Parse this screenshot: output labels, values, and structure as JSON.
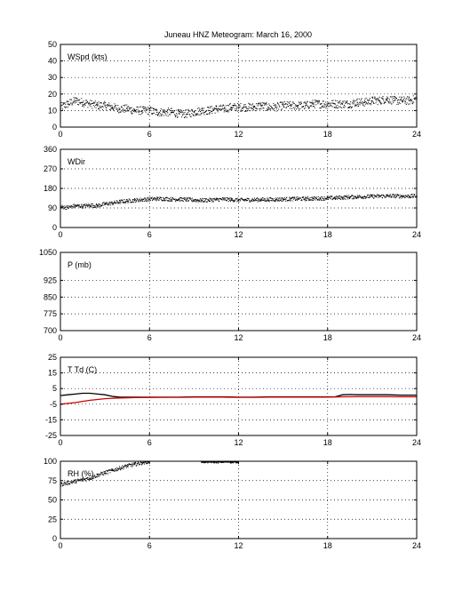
{
  "title": "Juneau HNZ Meteogram:      March 16, 2000",
  "chart_data": [
    {
      "type": "scatter",
      "label": "WSpd (kts)",
      "xlim": [
        0,
        24
      ],
      "ylim": [
        0,
        50
      ],
      "xticks": [
        0,
        6,
        12,
        18,
        24
      ],
      "yticks": [
        0,
        10,
        20,
        30,
        40,
        50
      ],
      "grid": true,
      "series": [
        {
          "values_hint": "noisy dotted wind speed",
          "color": "#000000",
          "x": [
            0,
            0.5,
            1,
            1.5,
            2,
            2.5,
            3,
            3.5,
            4,
            4.5,
            5,
            5.5,
            6,
            6.5,
            7,
            7.5,
            8,
            8.5,
            9,
            9.5,
            10,
            10.5,
            11,
            11.5,
            12,
            12.5,
            13,
            13.5,
            14,
            14.5,
            15,
            15.5,
            16,
            16.5,
            17,
            17.5,
            18,
            18.5,
            19,
            19.5,
            20,
            20.5,
            21,
            21.5,
            22,
            22.5,
            23,
            23.5,
            24
          ],
          "y": [
            12,
            14,
            16,
            15,
            14,
            13,
            13,
            12,
            11,
            11,
            10,
            10,
            10,
            9,
            9,
            9,
            8,
            8,
            9,
            10,
            10,
            11,
            11,
            12,
            12,
            12,
            12,
            13,
            12,
            12,
            13,
            13,
            13,
            13,
            14,
            14,
            14,
            14,
            14,
            14,
            15,
            15,
            16,
            16,
            17,
            16,
            16,
            16,
            17
          ]
        }
      ]
    },
    {
      "type": "scatter",
      "label": "WDir",
      "xlim": [
        0,
        24
      ],
      "ylim": [
        0,
        360
      ],
      "xticks": [
        0,
        6,
        12,
        18,
        24
      ],
      "yticks": [
        0,
        90,
        180,
        270,
        360
      ],
      "grid": true,
      "series": [
        {
          "color": "#000000",
          "x": [
            0,
            0.5,
            1,
            1.5,
            2,
            2.5,
            3,
            3.5,
            4,
            4.5,
            5,
            5.5,
            6,
            6.5,
            7,
            7.5,
            8,
            8.5,
            9,
            9.5,
            10,
            10.5,
            11,
            11.5,
            12,
            12.5,
            13,
            13.5,
            14,
            14.5,
            15,
            15.5,
            16,
            16.5,
            17,
            17.5,
            18,
            18.5,
            19,
            19.5,
            20,
            20.5,
            21,
            21.5,
            22,
            22.5,
            23,
            23.5,
            24
          ],
          "y": [
            95,
            92,
            100,
            98,
            102,
            100,
            108,
            112,
            118,
            122,
            125,
            128,
            130,
            132,
            132,
            130,
            130,
            128,
            126,
            125,
            126,
            128,
            130,
            128,
            126,
            127,
            127,
            128,
            128,
            129,
            130,
            131,
            132,
            132,
            133,
            134,
            135,
            136,
            138,
            140,
            141,
            142,
            143,
            144,
            145,
            145,
            144,
            144,
            145
          ]
        }
      ]
    },
    {
      "type": "line",
      "label": "P (mb)",
      "xlim": [
        0,
        24
      ],
      "ylim": [
        700,
        1050
      ],
      "xticks": [
        0,
        6,
        12,
        18,
        24
      ],
      "yticks": [
        700,
        775,
        850,
        925,
        1050
      ],
      "grid": true,
      "series": []
    },
    {
      "type": "line",
      "label": "T Td (C)",
      "xlim": [
        0,
        24
      ],
      "ylim": [
        -25,
        25
      ],
      "xticks": [
        0,
        6,
        12,
        18,
        24
      ],
      "yticks": [
        -25,
        -15,
        -5,
        5,
        15,
        25
      ],
      "grid": true,
      "series": [
        {
          "color": "#000000",
          "x": [
            0,
            0.5,
            1,
            1.5,
            2,
            2.5,
            3,
            3.5,
            4,
            5,
            6,
            7,
            8,
            9,
            10,
            11,
            12,
            13,
            14,
            15,
            16,
            17,
            18,
            18.5,
            19,
            19.5,
            20,
            21,
            22,
            23,
            24
          ],
          "y": [
            0.5,
            1.0,
            1.5,
            2.0,
            2.0,
            1.5,
            1.0,
            0.0,
            -0.5,
            -0.5,
            -0.5,
            -0.5,
            -0.5,
            -0.3,
            -0.3,
            -0.3,
            -0.5,
            -0.5,
            -0.3,
            -0.3,
            -0.3,
            -0.3,
            -0.3,
            -0.3,
            1.0,
            1.2,
            1.0,
            1.0,
            1.0,
            0.8,
            0.8
          ]
        },
        {
          "color": "#cc0000",
          "x": [
            0,
            0.5,
            1,
            1.5,
            2,
            2.5,
            3,
            3.5,
            4,
            5,
            6,
            7,
            8,
            9,
            10,
            11,
            12,
            13,
            14,
            15,
            16,
            17,
            18,
            19,
            20,
            21,
            22,
            23,
            24
          ],
          "y": [
            -5,
            -4.5,
            -4,
            -3.2,
            -2.5,
            -2,
            -1.5,
            -1.2,
            -1.0,
            -0.8,
            -0.7,
            -0.6,
            -0.6,
            -0.5,
            -0.5,
            -0.5,
            -0.6,
            -0.6,
            -0.5,
            -0.5,
            -0.5,
            -0.5,
            -0.5,
            -0.3,
            -0.2,
            -0.2,
            -0.2,
            -0.3,
            -0.3
          ]
        }
      ]
    },
    {
      "type": "scatter",
      "label": "RH (%)",
      "xlim": [
        0,
        24
      ],
      "ylim": [
        0,
        100
      ],
      "xticks": [
        0,
        6,
        12,
        18,
        24
      ],
      "yticks": [
        0,
        25,
        50,
        75,
        100
      ],
      "grid": true,
      "series": [
        {
          "color": "#000000",
          "x": [
            0,
            0.5,
            1,
            1.5,
            2,
            2.5,
            3,
            3.5,
            4,
            4.5,
            5,
            5.5,
            6,
            9.5,
            10,
            10.5,
            11,
            11.5,
            12
          ],
          "y": [
            70,
            72,
            74,
            76,
            78,
            82,
            85,
            88,
            91,
            94,
            96,
            98,
            100,
            100,
            100,
            100,
            100,
            100,
            100
          ]
        }
      ]
    }
  ]
}
